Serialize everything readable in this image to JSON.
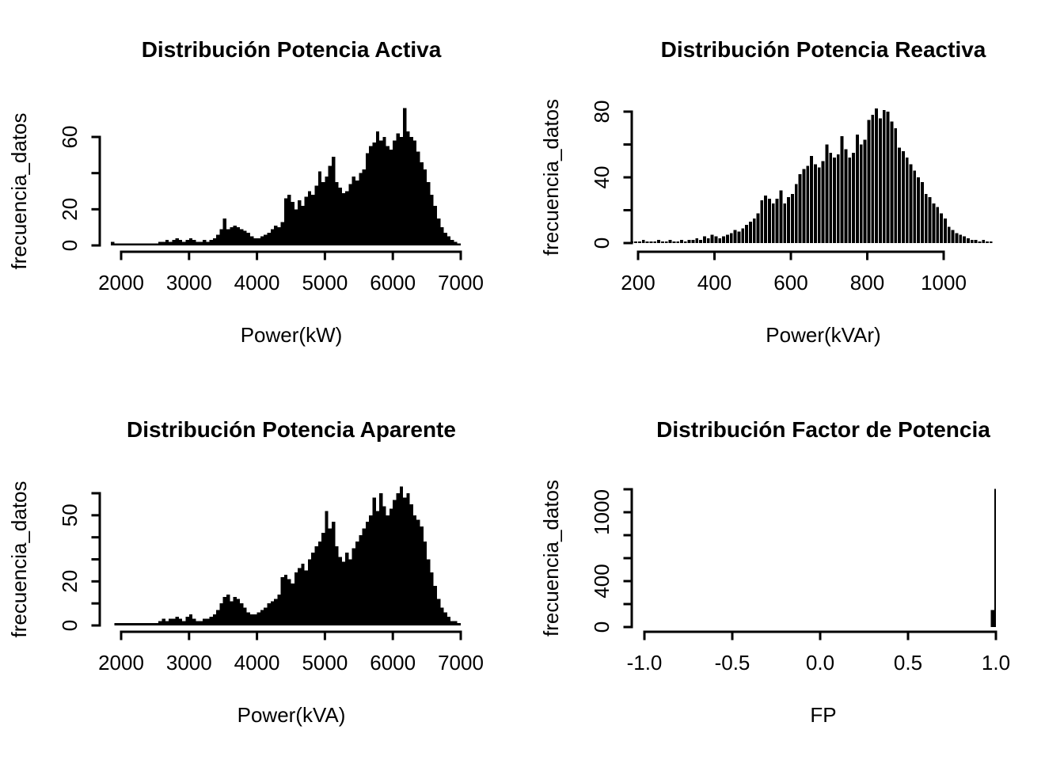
{
  "page": {
    "background": "#ffffff",
    "foreground": "#000000",
    "bar_color": "#000000",
    "description": "2x2 grid of R base-graphics histograms"
  },
  "chart_data": [
    {
      "type": "bar",
      "variant": "histogram",
      "title": "Distribución Potencia Activa",
      "xlabel": "Power(kW)",
      "ylabel": "frecuencia_datos",
      "x_ticks": [
        2000,
        3000,
        4000,
        5000,
        6000,
        7000
      ],
      "x_tick_labels": [
        "2000",
        "3000",
        "4000",
        "5000",
        "6000",
        "7000"
      ],
      "y_ticks": [
        0,
        20,
        40,
        60
      ],
      "y_tick_labels": [
        "0",
        "20",
        "",
        "60"
      ],
      "xlim": [
        1850,
        7000
      ],
      "ylim": [
        0,
        77
      ],
      "grid": false,
      "legend": false,
      "bins": {
        "start": 1850,
        "width": 50
      },
      "counts": [
        2,
        1,
        1,
        1,
        1,
        1,
        1,
        1,
        1,
        1,
        1,
        1,
        1,
        1,
        2,
        2,
        3,
        2,
        3,
        4,
        3,
        2,
        3,
        4,
        3,
        2,
        2,
        3,
        2,
        3,
        4,
        6,
        9,
        15,
        9,
        10,
        11,
        10,
        9,
        8,
        7,
        5,
        4,
        4,
        5,
        6,
        7,
        9,
        11,
        10,
        13,
        26,
        28,
        24,
        20,
        25,
        22,
        27,
        30,
        28,
        33,
        41,
        35,
        38,
        44,
        49,
        35,
        32,
        29,
        30,
        34,
        38,
        36,
        40,
        42,
        51,
        55,
        57,
        63,
        58,
        60,
        55,
        53,
        58,
        62,
        60,
        76,
        63,
        60,
        58,
        52,
        46,
        42,
        35,
        28,
        22,
        15,
        10,
        7,
        5,
        3,
        2,
        1
      ]
    },
    {
      "type": "bar",
      "variant": "histogram",
      "title": "Distribución Potencia Reactiva",
      "xlabel": "Power(kVAr)",
      "ylabel": "frecuencia_datos",
      "x_ticks": [
        200,
        400,
        600,
        800,
        1000
      ],
      "x_tick_labels": [
        "200",
        "400",
        "600",
        "800",
        "1000"
      ],
      "y_ticks": [
        0,
        20,
        40,
        60,
        80
      ],
      "y_tick_labels": [
        "0",
        "",
        "40",
        "",
        "80"
      ],
      "xlim": [
        180,
        1130
      ],
      "ylim": [
        0,
        83
      ],
      "grid": false,
      "legend": false,
      "bins": {
        "start": 180,
        "width": 10
      },
      "counts": [
        1,
        1,
        1,
        2,
        1,
        1,
        1,
        2,
        1,
        1,
        2,
        1,
        1,
        2,
        1,
        2,
        2,
        3,
        2,
        4,
        3,
        5,
        4,
        3,
        4,
        5,
        6,
        8,
        7,
        9,
        11,
        13,
        15,
        18,
        26,
        29,
        27,
        24,
        27,
        32,
        24,
        28,
        30,
        36,
        42,
        45,
        47,
        53,
        48,
        46,
        50,
        60,
        55,
        52,
        54,
        65,
        57,
        52,
        55,
        66,
        60,
        63,
        75,
        78,
        82,
        76,
        81,
        80,
        74,
        70,
        58,
        56,
        52,
        48,
        44,
        40,
        37,
        30,
        28,
        24,
        22,
        18,
        15,
        10,
        8,
        6,
        5,
        4,
        3,
        2,
        2,
        1,
        2,
        1,
        1
      ]
    },
    {
      "type": "bar",
      "variant": "histogram",
      "title": "Distribución Potencia Aparente",
      "xlabel": "Power(kVA)",
      "ylabel": "frecuencia_datos",
      "x_ticks": [
        2000,
        3000,
        4000,
        5000,
        6000,
        7000
      ],
      "x_tick_labels": [
        "2000",
        "3000",
        "4000",
        "5000",
        "6000",
        "7000"
      ],
      "y_ticks": [
        0,
        10,
        20,
        30,
        40,
        50,
        60
      ],
      "y_tick_labels": [
        "0",
        "",
        "20",
        "",
        "",
        "50",
        ""
      ],
      "xlim": [
        1900,
        7000
      ],
      "ylim": [
        0,
        65
      ],
      "grid": false,
      "legend": false,
      "bins": {
        "start": 1900,
        "width": 50
      },
      "counts": [
        1,
        1,
        1,
        1,
        1,
        1,
        1,
        1,
        1,
        1,
        1,
        1,
        1,
        2,
        3,
        2,
        3,
        3,
        4,
        3,
        2,
        4,
        5,
        3,
        2,
        2,
        3,
        3,
        4,
        5,
        7,
        10,
        13,
        14,
        11,
        13,
        12,
        10,
        8,
        6,
        5,
        5,
        6,
        7,
        8,
        10,
        11,
        12,
        14,
        22,
        23,
        21,
        19,
        24,
        26,
        28,
        25,
        30,
        33,
        36,
        38,
        42,
        52,
        44,
        47,
        36,
        31,
        29,
        33,
        30,
        35,
        38,
        41,
        44,
        47,
        50,
        58,
        52,
        60,
        54,
        50,
        53,
        57,
        60,
        63,
        58,
        60,
        55,
        50,
        48,
        45,
        38,
        30,
        24,
        18,
        12,
        8,
        6,
        4,
        2,
        2,
        1
      ]
    },
    {
      "type": "bar",
      "variant": "histogram",
      "title": "Distribución Factor de Potencia",
      "xlabel": "FP",
      "ylabel": "frecuencia_datos",
      "x_ticks": [
        -1.0,
        -0.5,
        0.0,
        0.5,
        1.0
      ],
      "x_tick_labels": [
        "-1.0",
        "-0.5",
        "0.0",
        "0.5",
        "1.0"
      ],
      "y_ticks": [
        0,
        200,
        400,
        600,
        800,
        1000,
        1200
      ],
      "y_tick_labels": [
        "0",
        "",
        "400",
        "",
        "",
        "1000",
        ""
      ],
      "xlim": [
        -1.0,
        1.0
      ],
      "ylim": [
        0,
        1205
      ],
      "grid": false,
      "legend": false,
      "bins": {
        "start": 0.97,
        "width": 0.01
      },
      "counts": [
        150,
        150,
        1205
      ]
    }
  ]
}
